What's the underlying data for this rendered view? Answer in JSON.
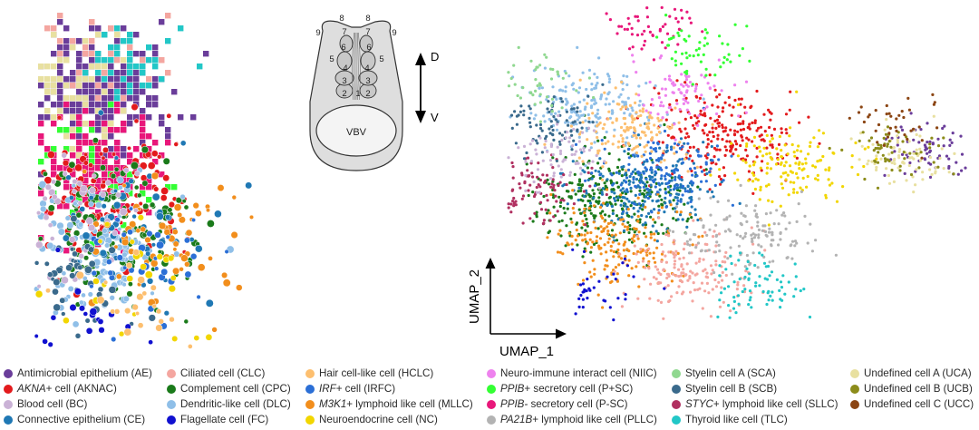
{
  "schematic": {
    "regions": [
      "1",
      "2",
      "3",
      "4",
      "5",
      "6",
      "7",
      "8",
      "9"
    ],
    "vbv_label": "VBV",
    "axis_top": "D",
    "axis_bottom": "V"
  },
  "umap": {
    "xlabel": "UMAP_1",
    "ylabel": "UMAP_2"
  },
  "legend": [
    {
      "italic": "",
      "text": "Antimicrobial epithelium (AE)",
      "color": "#6a3d9a",
      "icon": "dot"
    },
    {
      "italic": "AKNA",
      "text": "+ cell (AKNAC)",
      "color": "#e31a1c",
      "icon": "dot"
    },
    {
      "italic": "",
      "text": "Blood cell (BC)",
      "color": "#cab2d6",
      "icon": "dot"
    },
    {
      "italic": "",
      "text": "Connective epithelium (CE)",
      "color": "#1f78b4",
      "icon": "dot"
    },
    {
      "italic": "",
      "text": "Ciliated cell (CLC)",
      "color": "#f4a6a0",
      "icon": "dot"
    },
    {
      "italic": "",
      "text": "Complement cell (CPC)",
      "color": "#1a7a1a",
      "icon": "dot"
    },
    {
      "italic": "",
      "text": "Dendritic-like cell (DLC)",
      "color": "#8fbfe8",
      "icon": "dot"
    },
    {
      "italic": "",
      "text": "Flagellate cell (FC)",
      "color": "#1010d0",
      "icon": "dot"
    },
    {
      "italic": "",
      "text": "Hair cell-like cell (HCLC)",
      "color": "#fdbf6f",
      "icon": "dot"
    },
    {
      "italic": "IRF",
      "text": "+ cell (IRFC)",
      "color": "#2b6fd6",
      "icon": "dot"
    },
    {
      "italic": "M3K1",
      "text": "+ lymphoid like cell (MLLC)",
      "color": "#f28e1c",
      "icon": "dot"
    },
    {
      "italic": "",
      "text": "Neuroendocrine cell (NC)",
      "color": "#f2d600",
      "icon": "dot"
    },
    {
      "italic": "",
      "text": "Neuro-immune interact cell (NIIC)",
      "color": "#ee82ee",
      "icon": "dot"
    },
    {
      "italic": "PPIB",
      "text": "+ secretory cell (P+SC)",
      "color": "#33ff33",
      "icon": "dot"
    },
    {
      "italic": "PPIB-",
      "text": " secretory cell (P-SC)",
      "color": "#e8177a",
      "icon": "dot"
    },
    {
      "italic": "PA21B",
      "text": "+ lymphoid like cell (PLLC)",
      "color": "#b3b3b3",
      "icon": "dot"
    },
    {
      "italic": "",
      "text": "Styelin cell A (SCA)",
      "color": "#90d890",
      "icon": "dot"
    },
    {
      "italic": "",
      "text": "Styelin cell B (SCB)",
      "color": "#3a6a8c",
      "icon": "dot"
    },
    {
      "italic": "STYC",
      "text": "+ lymphoid like cell (SLLC)",
      "color": "#b03060",
      "icon": "dot"
    },
    {
      "italic": "",
      "text": "Thyroid like cell (TLC)",
      "color": "#22c7c7",
      "icon": "dot"
    },
    {
      "italic": "",
      "text": "Undefined cell A (UCA)",
      "color": "#e8e0a0",
      "icon": "dot"
    },
    {
      "italic": "",
      "text": "Undefined cell B (UCB)",
      "color": "#8c8c1a",
      "icon": "dot"
    },
    {
      "italic": "",
      "text": "Undefined cell C (UCC)",
      "color": "#8b4513",
      "icon": "dot"
    }
  ],
  "chart_data": [
    {
      "type": "scatter",
      "title": "",
      "xlabel": "",
      "ylabel": "",
      "grid": false,
      "clusters": [
        {
          "code": "AE",
          "x": 0.17,
          "y": 0.78,
          "weight": 70
        },
        {
          "code": "P+SC",
          "x": 0.13,
          "y": 0.53,
          "weight": 14
        },
        {
          "code": "P-SC",
          "x": 0.17,
          "y": 0.55,
          "weight": 40
        },
        {
          "code": "UCA",
          "x": 0.1,
          "y": 0.8,
          "weight": 16
        },
        {
          "code": "CLC",
          "x": 0.18,
          "y": 0.92,
          "weight": 12
        },
        {
          "code": "TLC",
          "x": 0.27,
          "y": 0.88,
          "weight": 10
        },
        {
          "code": "AKNAC",
          "x": 0.2,
          "y": 0.45,
          "weight": 28
        },
        {
          "code": "CPC",
          "x": 0.23,
          "y": 0.35,
          "weight": 34
        },
        {
          "code": "DLC",
          "x": 0.16,
          "y": 0.3,
          "weight": 30
        },
        {
          "code": "CE",
          "x": 0.27,
          "y": 0.41,
          "weight": 12
        },
        {
          "code": "MLLC",
          "x": 0.33,
          "y": 0.32,
          "weight": 14
        },
        {
          "code": "BC",
          "x": 0.06,
          "y": 0.4,
          "weight": 14
        },
        {
          "code": "SCB",
          "x": 0.09,
          "y": 0.22,
          "weight": 12
        },
        {
          "code": "IRFC",
          "x": 0.32,
          "y": 0.28,
          "weight": 8
        },
        {
          "code": "FC",
          "x": 0.11,
          "y": 0.06,
          "weight": 8
        },
        {
          "code": "NC",
          "x": 0.26,
          "y": 0.2,
          "weight": 6
        },
        {
          "code": "HCLC",
          "x": 0.29,
          "y": 0.1,
          "weight": 6
        }
      ]
    },
    {
      "type": "scatter",
      "title": "",
      "xlabel": "UMAP_1",
      "ylabel": "UMAP_2",
      "grid": false,
      "clusters": [
        {
          "code": "P-SC",
          "x": 0.3,
          "y": 0.93,
          "weight": 60
        },
        {
          "code": "P+SC",
          "x": 0.42,
          "y": 0.85,
          "weight": 60
        },
        {
          "code": "SCA",
          "x": 0.06,
          "y": 0.76,
          "weight": 60
        },
        {
          "code": "DLC",
          "x": 0.18,
          "y": 0.68,
          "weight": 200
        },
        {
          "code": "SCB",
          "x": 0.1,
          "y": 0.62,
          "weight": 90
        },
        {
          "code": "NIIC",
          "x": 0.38,
          "y": 0.72,
          "weight": 90
        },
        {
          "code": "AKNAC",
          "x": 0.47,
          "y": 0.58,
          "weight": 260
        },
        {
          "code": "HCLC",
          "x": 0.27,
          "y": 0.6,
          "weight": 150
        },
        {
          "code": "BC",
          "x": 0.11,
          "y": 0.52,
          "weight": 80
        },
        {
          "code": "SLLC",
          "x": 0.05,
          "y": 0.42,
          "weight": 120
        },
        {
          "code": "CE",
          "x": 0.3,
          "y": 0.42,
          "weight": 260
        },
        {
          "code": "IRFC",
          "x": 0.34,
          "y": 0.48,
          "weight": 160
        },
        {
          "code": "CPC",
          "x": 0.22,
          "y": 0.38,
          "weight": 320
        },
        {
          "code": "NC",
          "x": 0.61,
          "y": 0.5,
          "weight": 150
        },
        {
          "code": "MLLC",
          "x": 0.24,
          "y": 0.26,
          "weight": 220
        },
        {
          "code": "PLLC",
          "x": 0.52,
          "y": 0.28,
          "weight": 150
        },
        {
          "code": "CLC",
          "x": 0.4,
          "y": 0.18,
          "weight": 180
        },
        {
          "code": "FC",
          "x": 0.14,
          "y": 0.12,
          "weight": 80
        },
        {
          "code": "TLC",
          "x": 0.55,
          "y": 0.12,
          "weight": 80
        },
        {
          "code": "AE",
          "x": 0.92,
          "y": 0.54,
          "weight": 80
        },
        {
          "code": "UCA",
          "x": 0.86,
          "y": 0.52,
          "weight": 80
        },
        {
          "code": "UCB",
          "x": 0.84,
          "y": 0.55,
          "weight": 60
        },
        {
          "code": "UCC",
          "x": 0.83,
          "y": 0.62,
          "weight": 40
        }
      ]
    }
  ]
}
